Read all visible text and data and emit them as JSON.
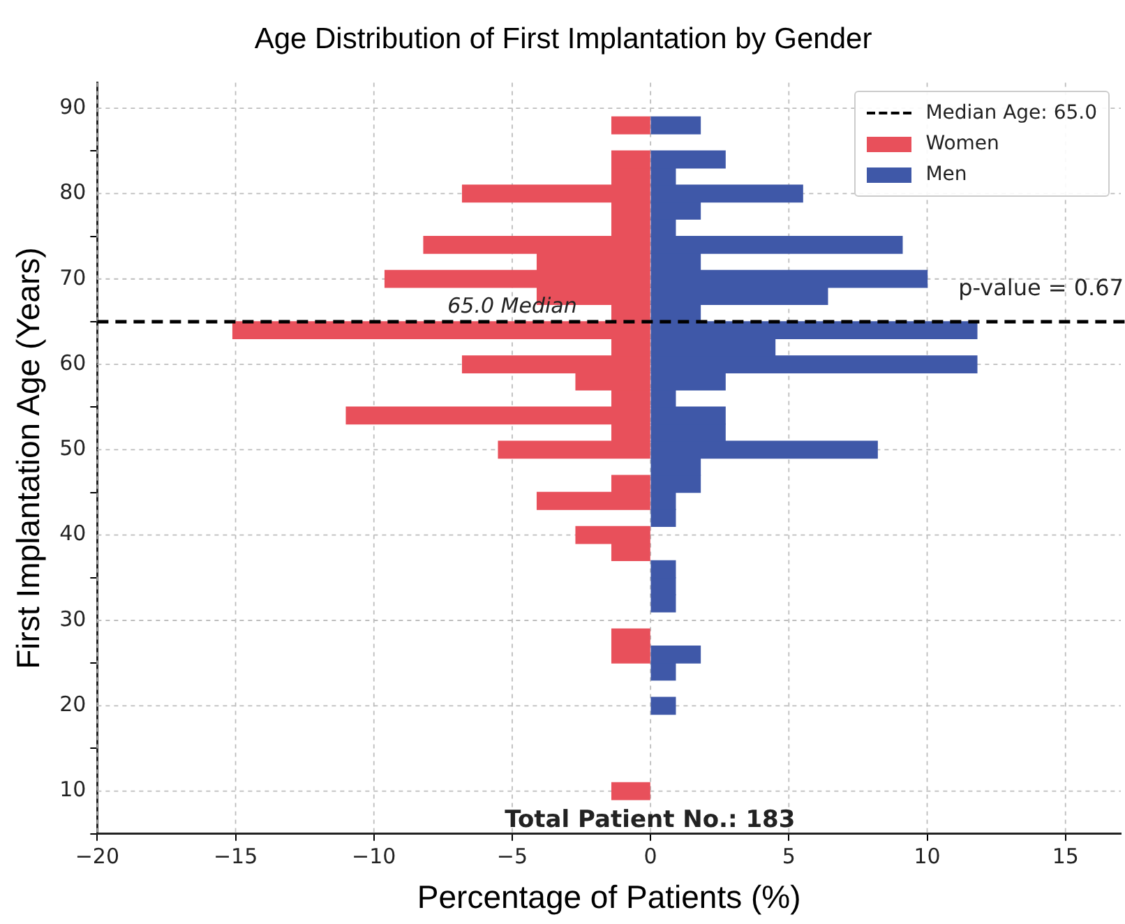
{
  "chart_data": {
    "type": "bar",
    "orientation": "horizontal",
    "title": "Age Distribution of First Implantation by Gender",
    "xlabel": "Percentage of Patients (%)",
    "ylabel": "First Implantation Age (Years)",
    "x": [
      10,
      12,
      14,
      16,
      18,
      20,
      22,
      24,
      26,
      28,
      30,
      32,
      34,
      36,
      38,
      40,
      42,
      44,
      46,
      48,
      50,
      52,
      54,
      56,
      58,
      60,
      62,
      64,
      66,
      68,
      70,
      72,
      74,
      76,
      78,
      80,
      82,
      84,
      86,
      88
    ],
    "series": [
      {
        "name": "Women",
        "color": "#e8505b",
        "values": [
          -1.4,
          null,
          null,
          null,
          null,
          null,
          null,
          null,
          -1.4,
          -1.4,
          null,
          null,
          null,
          null,
          -1.4,
          -2.7,
          null,
          -4.1,
          -1.4,
          null,
          -5.5,
          -1.4,
          -11.0,
          -1.4,
          -2.7,
          -6.8,
          -1.4,
          -15.1,
          -1.4,
          -4.1,
          -9.6,
          -4.1,
          -8.2,
          -1.4,
          -1.4,
          -6.8,
          -1.4,
          -1.4,
          null,
          -1.4
        ]
      },
      {
        "name": "Men",
        "color": "#3f58a8",
        "values": [
          null,
          null,
          null,
          null,
          null,
          0.9,
          null,
          0.9,
          1.8,
          null,
          null,
          0.9,
          0.9,
          0.9,
          null,
          null,
          0.9,
          0.9,
          1.8,
          1.8,
          8.2,
          2.7,
          2.7,
          0.9,
          2.7,
          11.8,
          4.5,
          11.8,
          1.8,
          6.4,
          10.0,
          1.8,
          9.1,
          0.9,
          1.8,
          5.5,
          0.9,
          2.7,
          null,
          1.8
        ]
      }
    ],
    "xlim": [
      -20,
      17
    ],
    "xticks": [
      {
        "value": -20,
        "label": "−20"
      },
      {
        "value": -15,
        "label": "−15"
      },
      {
        "value": -10,
        "label": "−10"
      },
      {
        "value": -5,
        "label": "−5"
      },
      0,
      5,
      10,
      15
    ],
    "ylim": [
      5,
      93
    ],
    "yticks": [
      10,
      20,
      30,
      40,
      50,
      60,
      70,
      80,
      90
    ],
    "ref_lines": [
      {
        "axis": "y",
        "value": 65,
        "label": "Median Age: 65.0",
        "color": "#000000",
        "line_style": "dashed"
      }
    ],
    "annotations": [
      "p-value = 0.67",
      "Total Patient No.: 183",
      {
        "text": "65.0 Median",
        "x": -5,
        "y": 65
      }
    ],
    "grid": true,
    "stacked": true,
    "legend": "top right"
  }
}
